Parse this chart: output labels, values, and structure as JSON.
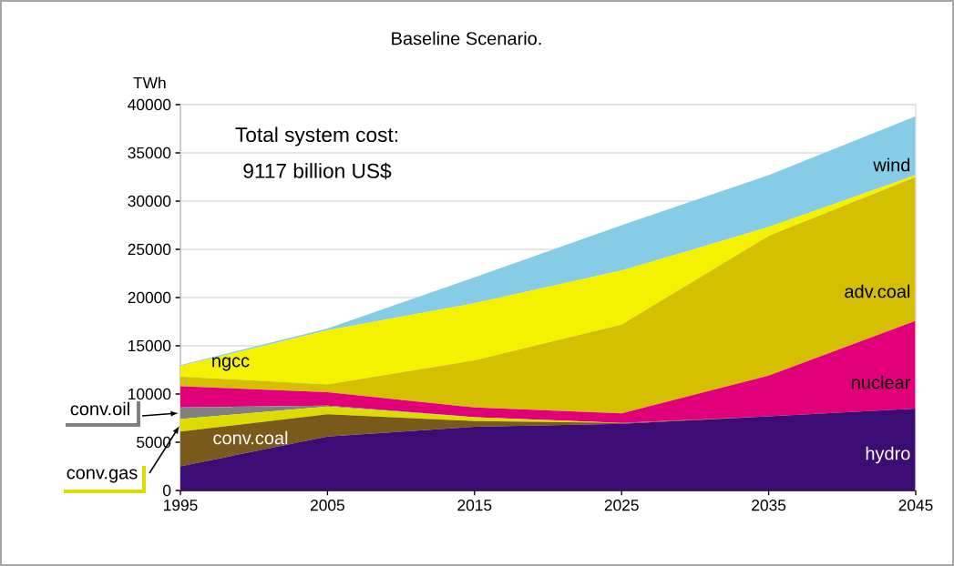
{
  "chart_data": {
    "type": "area",
    "stacked": true,
    "title": "Baseline Scenario.",
    "ylabel": "TWh",
    "x": [
      1995,
      2005,
      2015,
      2025,
      2035,
      2045
    ],
    "xlim": [
      1995,
      2045
    ],
    "xticks": [
      1995,
      2005,
      2015,
      2025,
      2035,
      2045
    ],
    "ylim": [
      0,
      40000
    ],
    "yticks": [
      0,
      5000,
      10000,
      15000,
      20000,
      25000,
      30000,
      35000,
      40000
    ],
    "grid": "y",
    "annotations": [
      "Total system cost:",
      "9117 billion US$"
    ],
    "series": [
      {
        "name": "hydro",
        "color": "#3b0c73",
        "values": [
          2500,
          5600,
          6600,
          6900,
          7700,
          8500
        ]
      },
      {
        "name": "conv.coal",
        "color": "#7a5a1a",
        "values": [
          3600,
          2300,
          600,
          100,
          0,
          0
        ]
      },
      {
        "name": "conv.gas",
        "color": "#dcdc00",
        "values": [
          1300,
          800,
          400,
          0,
          0,
          0
        ]
      },
      {
        "name": "conv.oil",
        "color": "#808080",
        "values": [
          1200,
          100,
          0,
          0,
          0,
          0
        ]
      },
      {
        "name": "nuclear",
        "color": "#e2007a",
        "values": [
          2200,
          1400,
          1000,
          1000,
          4200,
          9100
        ]
      },
      {
        "name": "adv.coal",
        "color": "#d4bf00",
        "values": [
          1000,
          800,
          4900,
          9200,
          14500,
          14900
        ]
      },
      {
        "name": "ngcc",
        "color": "#f5f200",
        "values": [
          1100,
          5600,
          5900,
          5600,
          900,
          200
        ]
      },
      {
        "name": "wind",
        "color": "#87cce6",
        "values": [
          100,
          200,
          2700,
          4700,
          5400,
          6100
        ]
      }
    ]
  }
}
